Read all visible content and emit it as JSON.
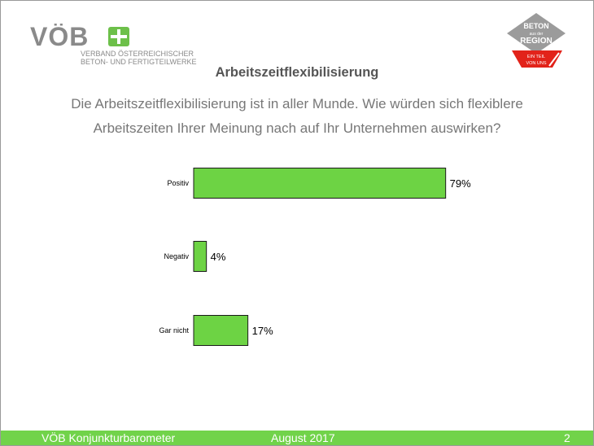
{
  "header": {
    "logo_text": "VÖB",
    "logo_tagline_1": "VERBAND ÖSTERREICHISCHER",
    "logo_tagline_2": "BETON- UND FERTIGTEILWERKE",
    "badge_line_1": "BETON",
    "badge_line_2": "aus der",
    "badge_line_3": "REGION",
    "badge_line_4": "EIN TEIL",
    "badge_line_5": "VON UNS"
  },
  "title": "Arbeitszeitflexibilisierung",
  "question_line_1": "Die Arbeitszeitflexibilisierung ist in aller Munde. Wie würden sich flexiblere",
  "question_line_2": "Arbeitszeiten Ihrer Meinung nach auf Ihr Unternehmen auswirken?",
  "chart_data": {
    "type": "bar",
    "orientation": "horizontal",
    "categories": [
      "Positiv",
      "Negativ",
      "Gar nicht"
    ],
    "values": [
      79,
      4,
      17
    ],
    "value_labels": [
      "79%",
      "4%",
      "17%"
    ],
    "xlim": [
      0,
      100
    ],
    "bar_color": "#6dd344",
    "grid": false
  },
  "footer": {
    "left": "VÖB Konjunkturbarometer",
    "center": "August 2017",
    "page": "2"
  },
  "colors": {
    "accent": "#71d34a",
    "logo_gray": "#8a8a8a",
    "badge_gray": "#9b9b9b",
    "badge_red": "#e2231a"
  }
}
